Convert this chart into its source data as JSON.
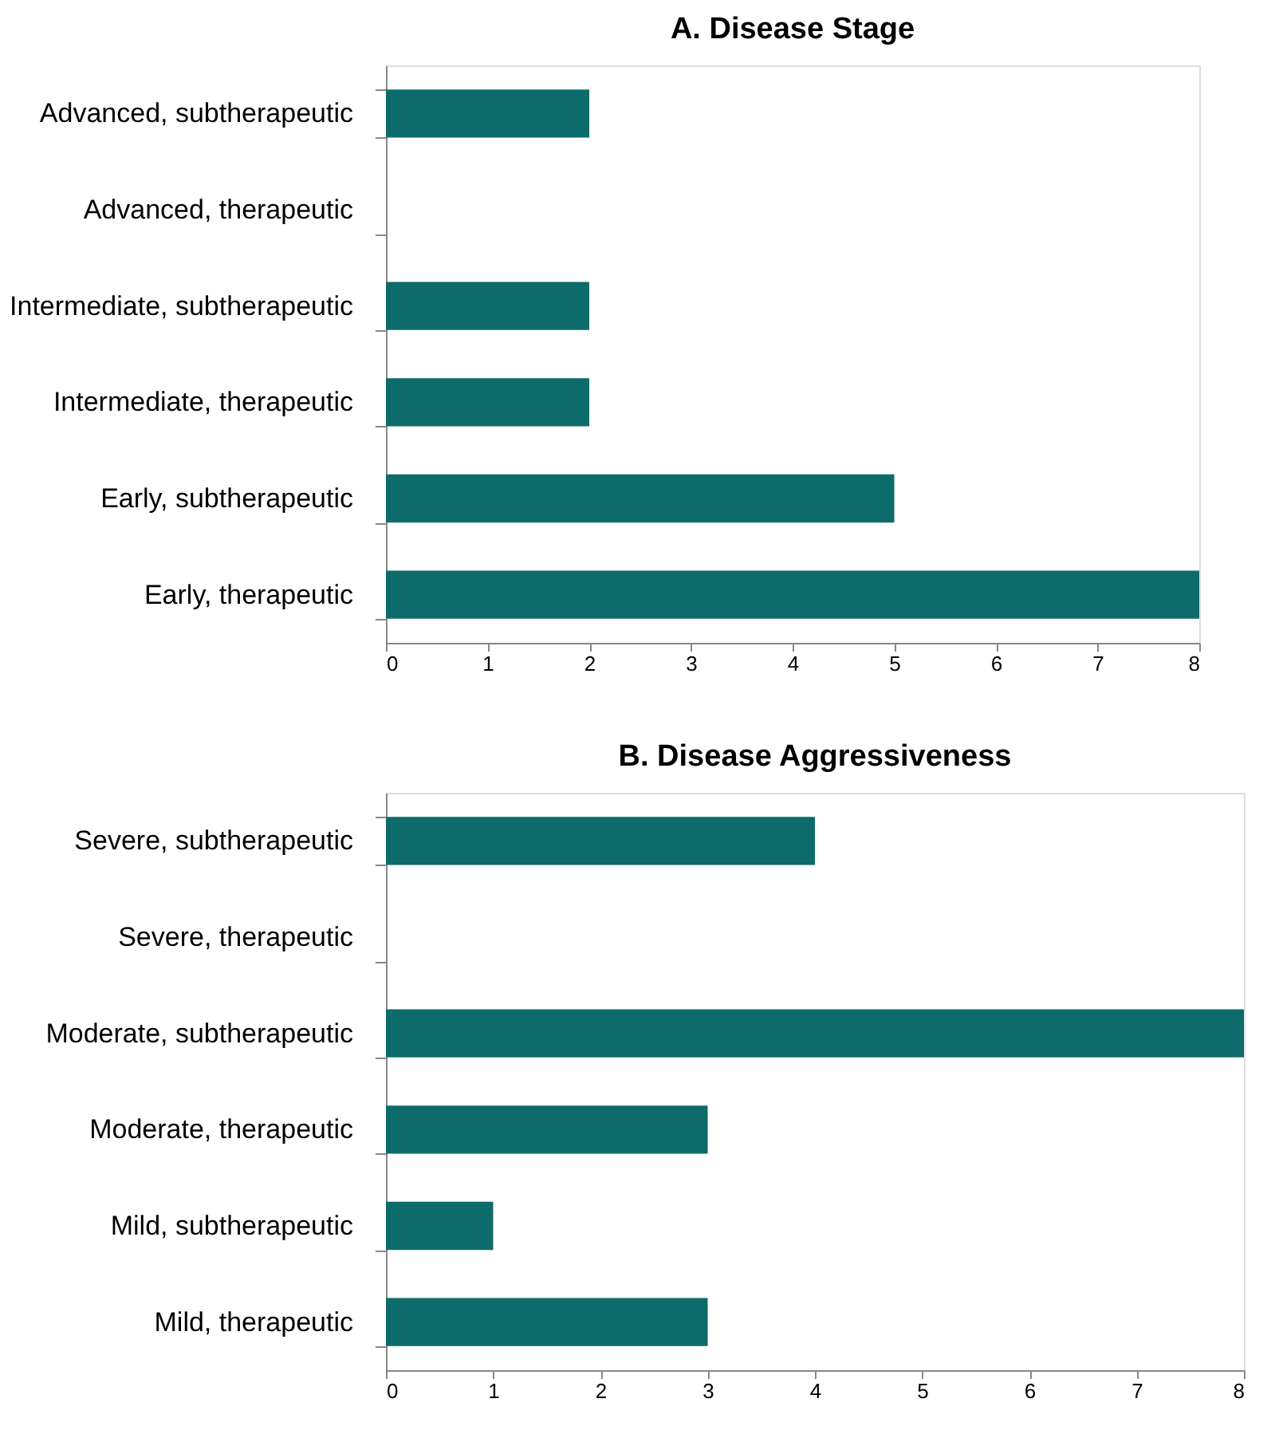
{
  "chart_data": [
    {
      "type": "bar",
      "title": "A. Disease Stage",
      "orientation": "horizontal",
      "categories": [
        "Advanced, subtherapeutic",
        "Advanced, therapeutic",
        "Intermediate, subtherapeutic",
        "Intermediate, therapeutic",
        "Early, subtherapeutic",
        "Early, therapeutic"
      ],
      "values": [
        2,
        0,
        2,
        2,
        5,
        8
      ],
      "color": "#0e6b6b",
      "xlim": [
        0,
        8
      ],
      "xticks": [
        0,
        1,
        2,
        3,
        4,
        5,
        6,
        7,
        8
      ],
      "grid": false
    },
    {
      "type": "bar",
      "title": "B. Disease Aggressiveness",
      "orientation": "horizontal",
      "categories": [
        "Severe, subtherapeutic",
        "Severe, therapeutic",
        "Moderate, subtherapeutic",
        "Moderate, therapeutic",
        "Mild, subtherapeutic",
        "Mild, therapeutic"
      ],
      "values": [
        4,
        0,
        8,
        3,
        1,
        3
      ],
      "color": "#0e6b6b",
      "xlim": [
        0,
        8
      ],
      "xticks": [
        0,
        1,
        2,
        3,
        4,
        5,
        6,
        7,
        8
      ],
      "grid": false
    }
  ]
}
